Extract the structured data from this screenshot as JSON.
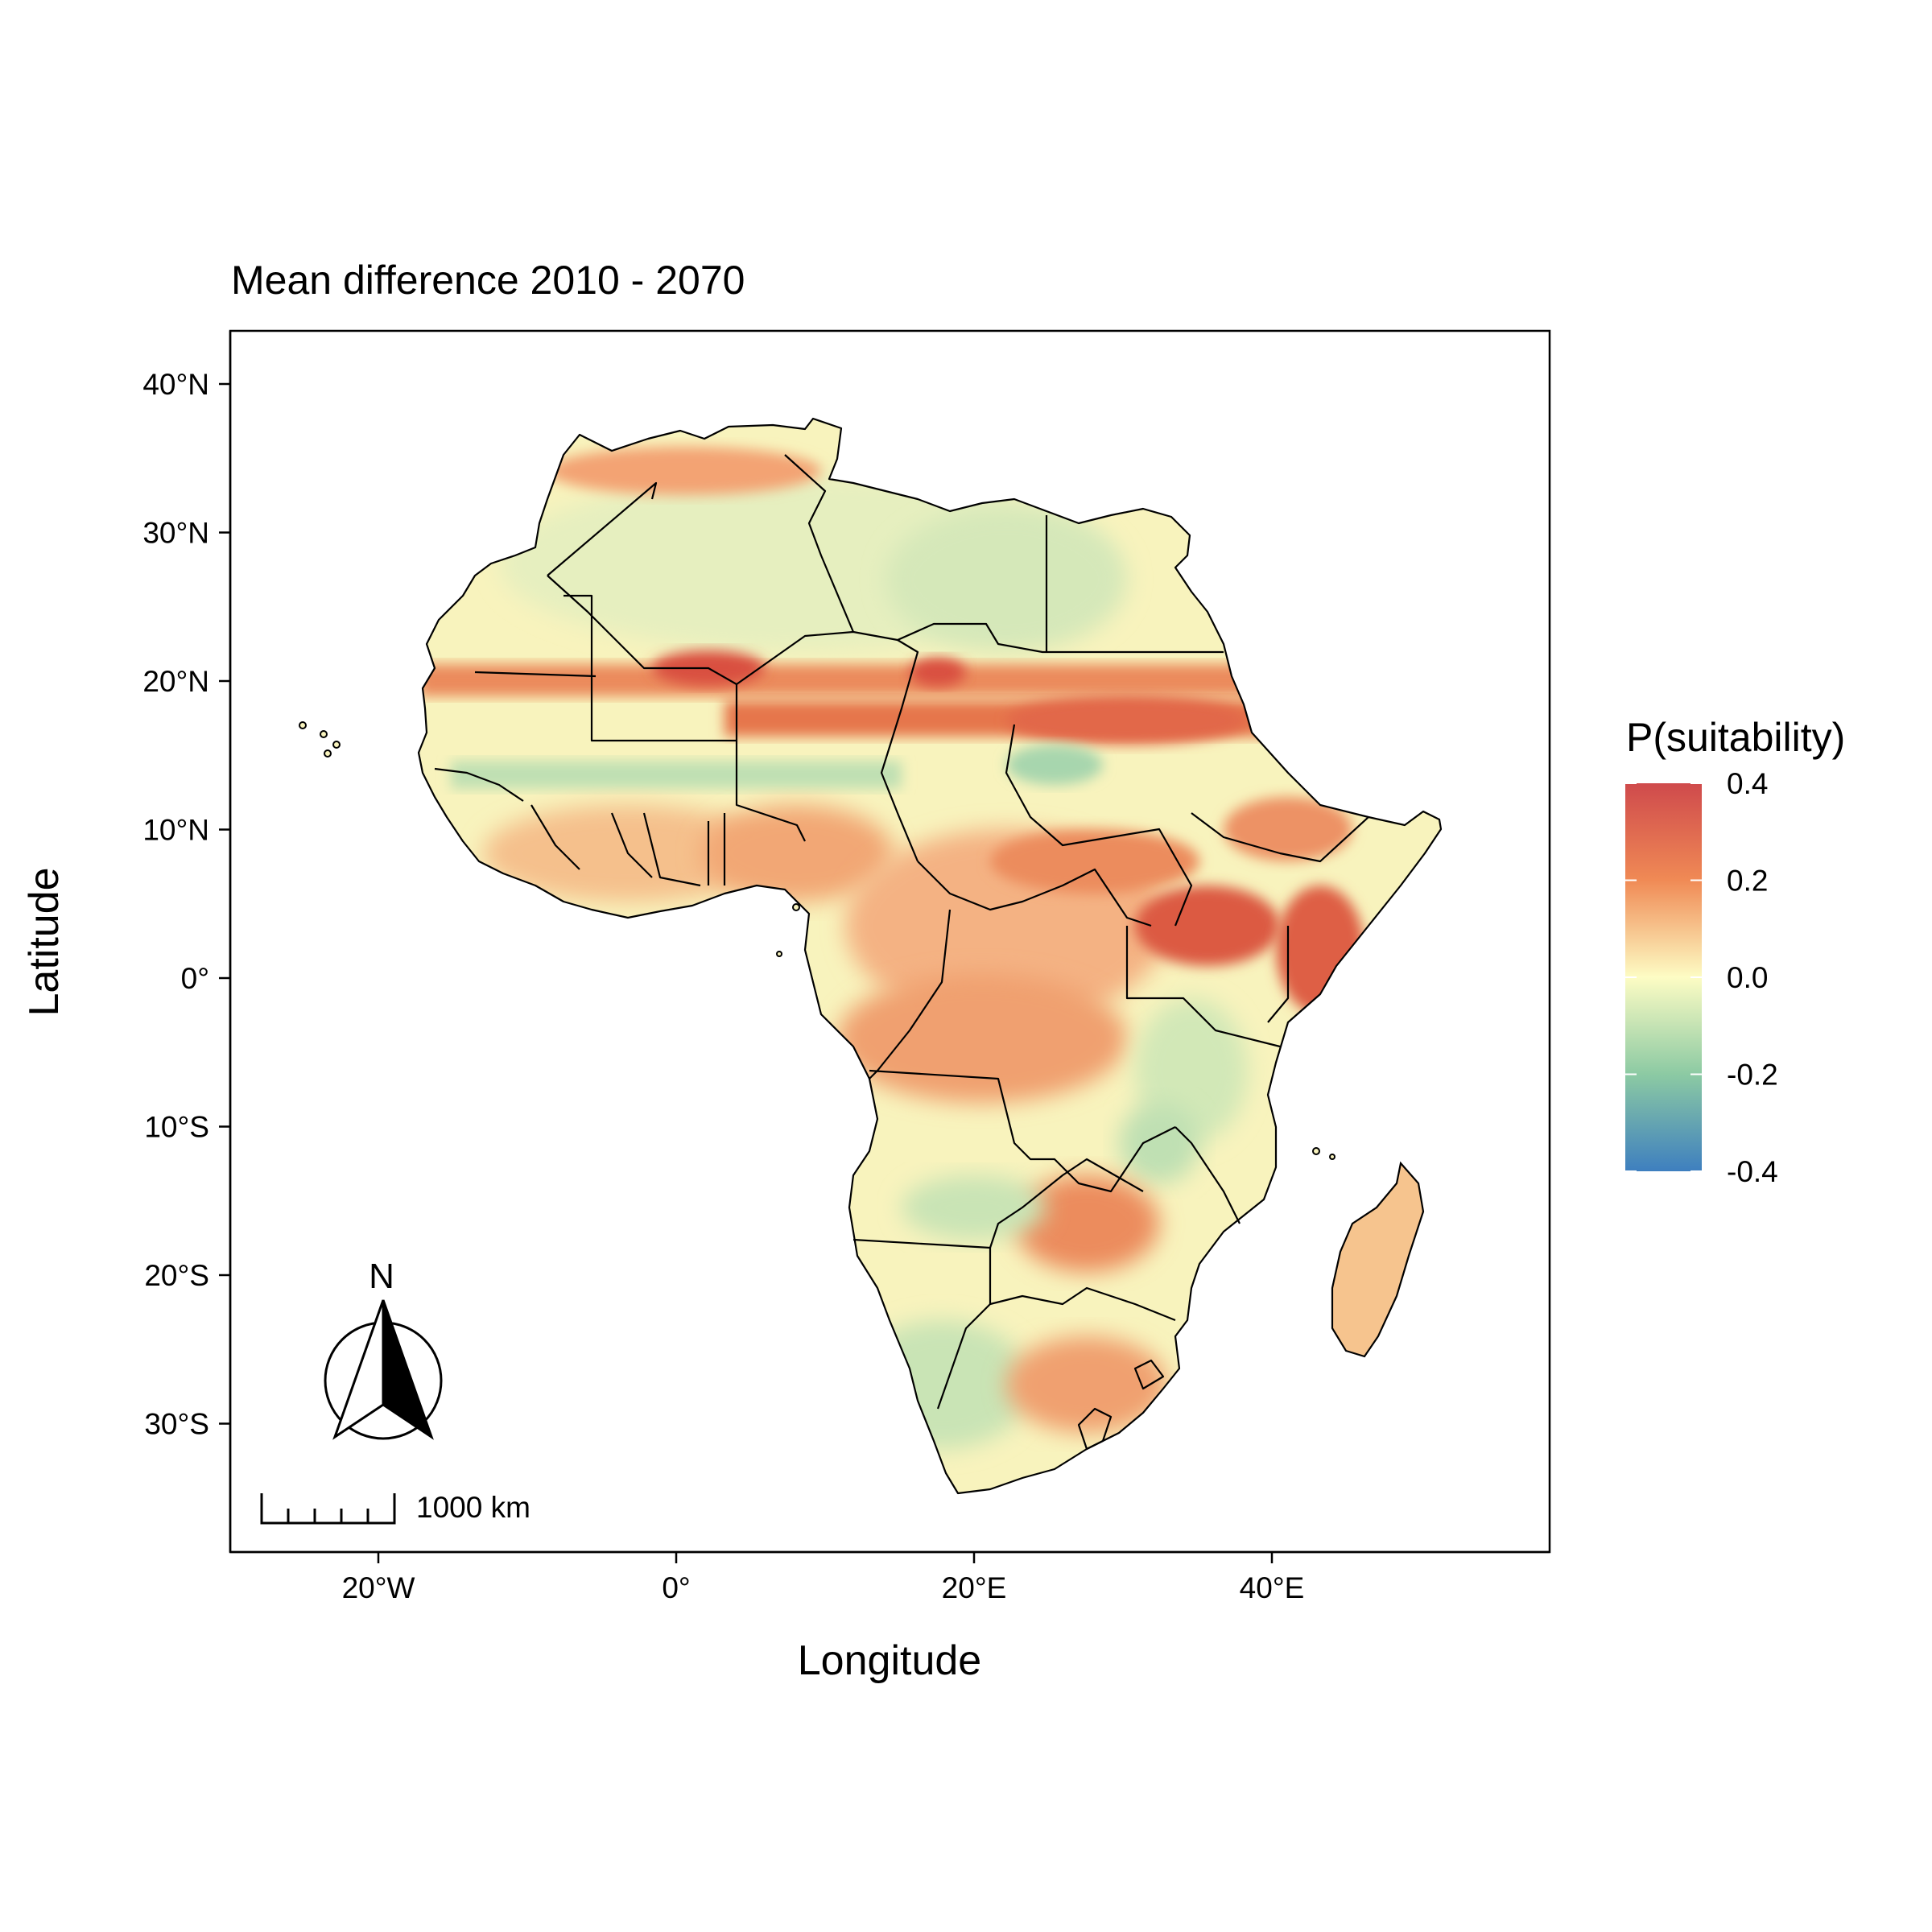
{
  "title": "Mean difference 2010 - 2070",
  "x_axis": {
    "title": "Longitude",
    "ticks": [
      {
        "value": -20,
        "label": "20°W"
      },
      {
        "value": 0,
        "label": "0°"
      },
      {
        "value": 20,
        "label": "20°E"
      },
      {
        "value": 40,
        "label": "40°E"
      }
    ]
  },
  "y_axis": {
    "title": "Latitude",
    "ticks": [
      {
        "value": 40,
        "label": "40°N"
      },
      {
        "value": 30,
        "label": "30°N"
      },
      {
        "value": 20,
        "label": "20°N"
      },
      {
        "value": 10,
        "label": "10°N"
      },
      {
        "value": 0,
        "label": "0°"
      },
      {
        "value": -10,
        "label": "10°S"
      },
      {
        "value": -20,
        "label": "20°S"
      },
      {
        "value": -30,
        "label": "30°S"
      }
    ]
  },
  "legend": {
    "title": "P(suitability)",
    "labels": [
      "0.4",
      "0.2",
      "0.0",
      "-0.2",
      "-0.4"
    ],
    "range": [
      -0.4,
      0.4
    ],
    "colors": [
      "#3e7fbf",
      "#8ccaa3",
      "#fdfcc4",
      "#f08a55",
      "#cf4a4c"
    ]
  },
  "scale_bar": {
    "label": "1000 km"
  },
  "north_arrow": {
    "label": "N"
  },
  "colors": {
    "neutral": "#f8f3bd",
    "positive_band": "#e8714a",
    "strong_positive": "#d9503f",
    "light_positive": "#f6c48e",
    "negative": "#a9d7b0",
    "border": "#000000"
  }
}
